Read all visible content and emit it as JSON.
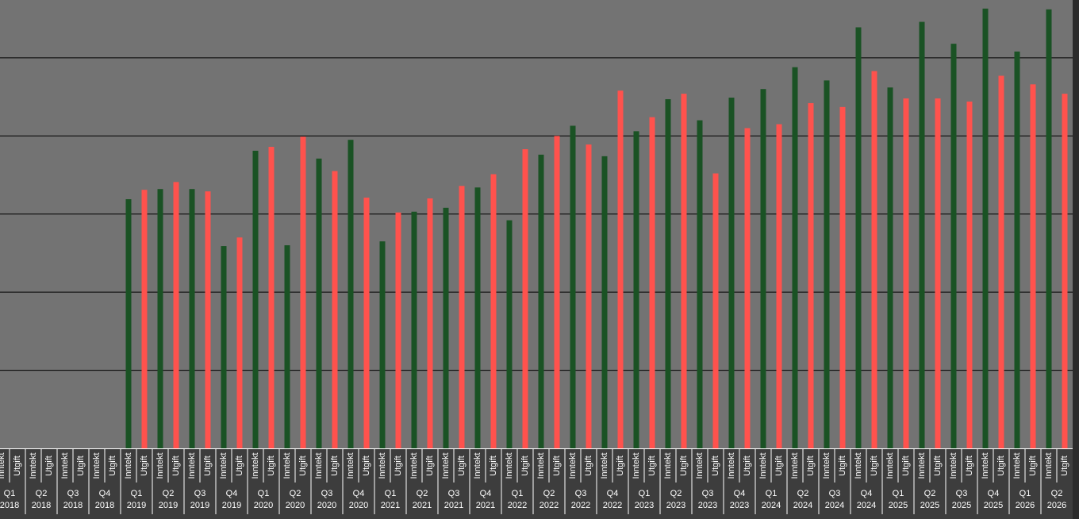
{
  "chart_data": {
    "type": "bar",
    "categories": [
      [
        "Q1",
        "2018"
      ],
      [
        "Q2",
        "2018"
      ],
      [
        "Q3",
        "2018"
      ],
      [
        "Q4",
        "2018"
      ],
      [
        "Q1",
        "2019"
      ],
      [
        "Q2",
        "2019"
      ],
      [
        "Q3",
        "2019"
      ],
      [
        "Q4",
        "2019"
      ],
      [
        "Q1",
        "2020"
      ],
      [
        "Q2",
        "2020"
      ],
      [
        "Q3",
        "2020"
      ],
      [
        "Q4",
        "2020"
      ],
      [
        "Q1",
        "2021"
      ],
      [
        "Q2",
        "2021"
      ],
      [
        "Q3",
        "2021"
      ],
      [
        "Q4",
        "2021"
      ],
      [
        "Q1",
        "2022"
      ],
      [
        "Q2",
        "2022"
      ],
      [
        "Q3",
        "2022"
      ],
      [
        "Q4",
        "2022"
      ],
      [
        "Q1",
        "2023"
      ],
      [
        "Q2",
        "2023"
      ],
      [
        "Q3",
        "2023"
      ],
      [
        "Q4",
        "2023"
      ],
      [
        "Q1",
        "2024"
      ],
      [
        "Q2",
        "2024"
      ],
      [
        "Q3",
        "2024"
      ],
      [
        "Q4",
        "2024"
      ],
      [
        "Q1",
        "2025"
      ],
      [
        "Q2",
        "2025"
      ],
      [
        "Q3",
        "2025"
      ],
      [
        "Q4",
        "2025"
      ],
      [
        "Q1",
        "2026"
      ],
      [
        "Q2",
        "2026"
      ]
    ],
    "series": [
      {
        "name": "Inntekt",
        "color": "#1a5224",
        "values": [
          null,
          null,
          null,
          null,
          3.19,
          3.32,
          3.32,
          2.59,
          3.81,
          2.6,
          3.71,
          3.95,
          2.65,
          3.03,
          3.08,
          3.34,
          2.92,
          3.76,
          4.13,
          3.74,
          4.06,
          4.47,
          4.2,
          4.49,
          4.6,
          4.88,
          4.71,
          5.39,
          4.62,
          5.46,
          5.18,
          5.63,
          5.08,
          5.62
        ]
      },
      {
        "name": "Utgift",
        "color": "#ff524d",
        "values": [
          null,
          null,
          null,
          null,
          3.31,
          3.41,
          3.29,
          2.7,
          3.86,
          3.99,
          3.55,
          3.21,
          3.02,
          3.2,
          3.36,
          3.51,
          3.83,
          4.0,
          3.89,
          4.58,
          4.24,
          4.54,
          3.52,
          4.1,
          4.15,
          4.42,
          4.37,
          4.83,
          4.48,
          4.48,
          4.44,
          4.77,
          4.66,
          4.54
        ]
      }
    ],
    "ylim": [
      0,
      5.74
    ],
    "yticks": [
      1,
      2,
      3,
      4,
      5
    ],
    "grid": true,
    "tick_labels": false
  }
}
